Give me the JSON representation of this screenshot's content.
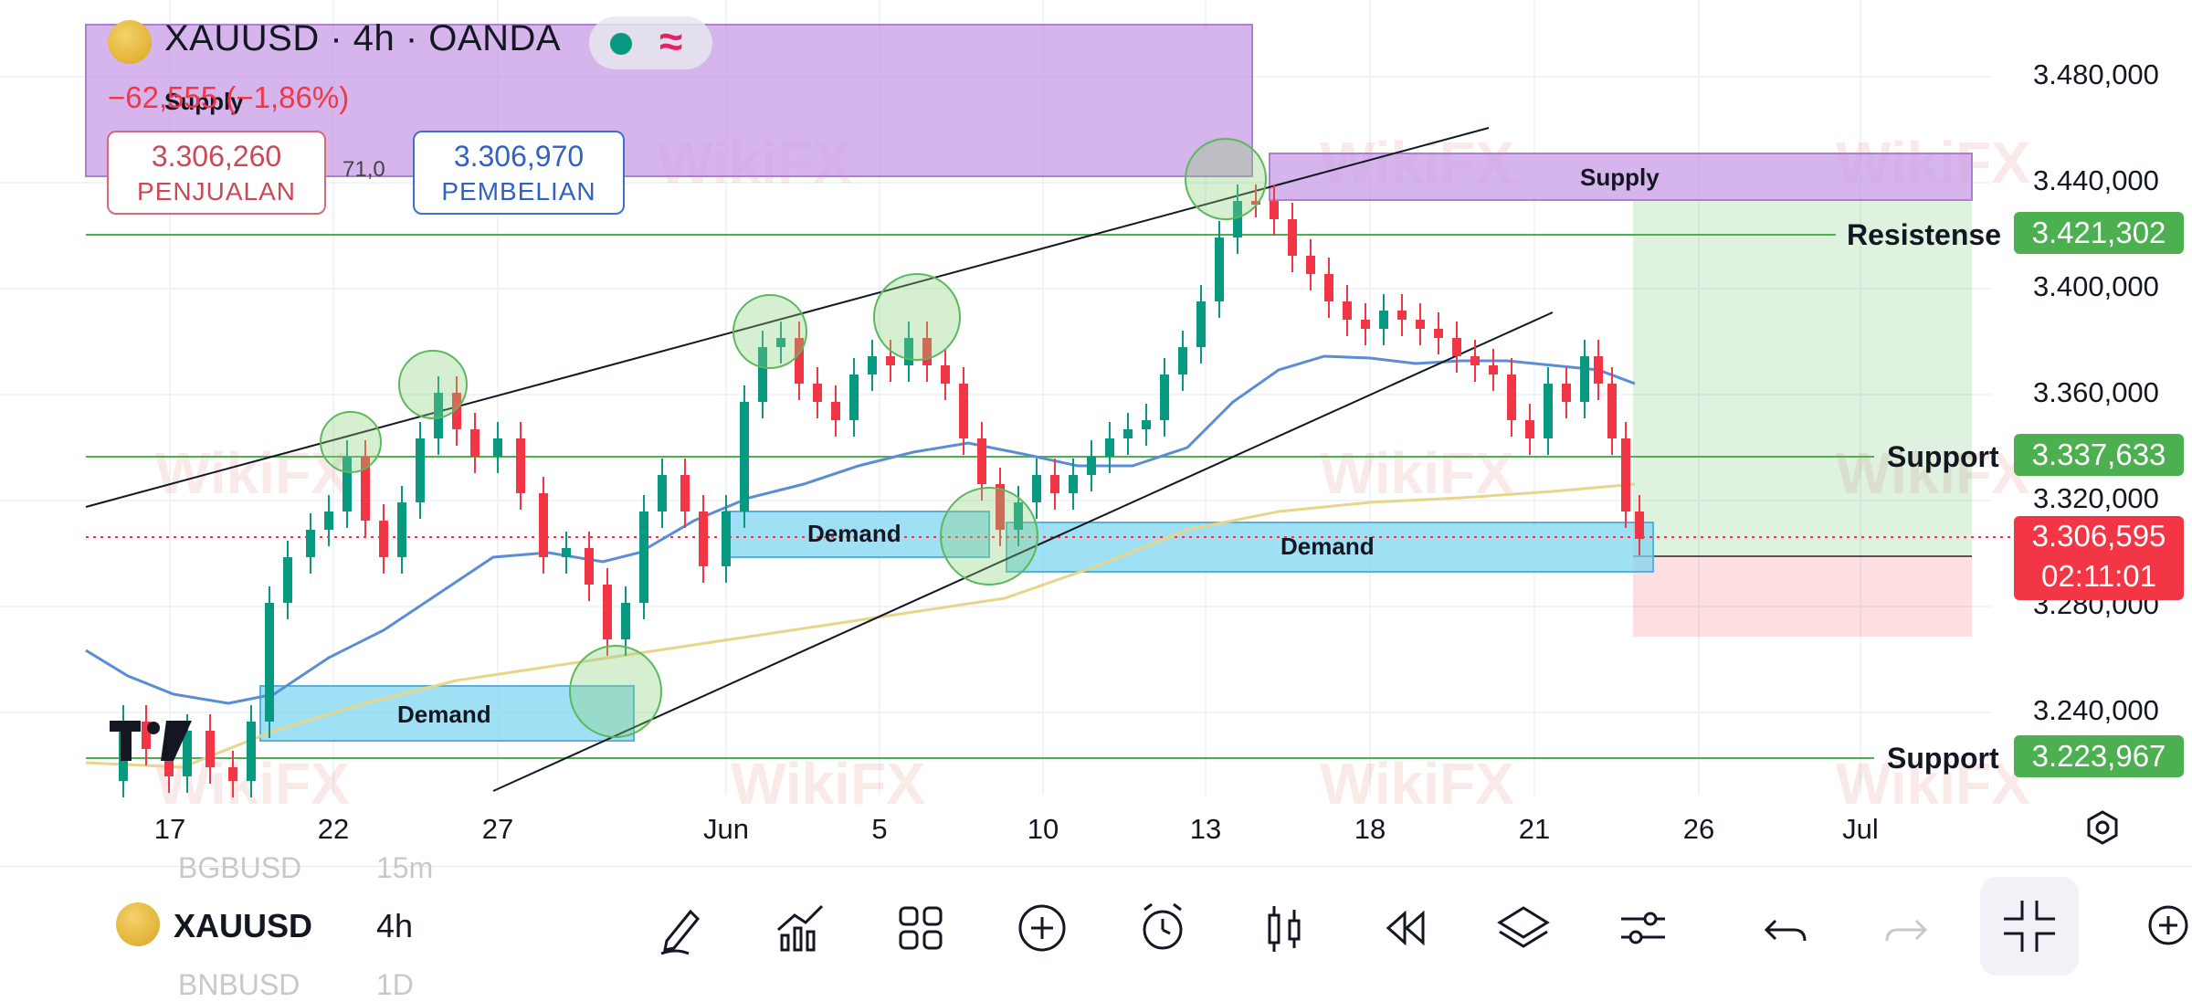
{
  "header": {
    "title": "XAUUSD · 4h · OANDA",
    "change": "−62,555 (−1,86%)",
    "sell_value": "3.306,260",
    "sell_label": "PENJUALAN",
    "spread": "71,0",
    "buy_value": "3.306,970",
    "buy_label": "PEMBELIAN"
  },
  "price_axis": [
    "3.480,000",
    "3.440,000",
    "3.400,000",
    "3.360,000",
    "3.320,000",
    "3.280,000",
    "3.240,000"
  ],
  "date_axis": [
    "17",
    "22",
    "27",
    "Jun",
    "5",
    "10",
    "13",
    "18",
    "21",
    "26",
    "Jul"
  ],
  "levels": {
    "resistance_label": "Resistense",
    "resistance_price": "3.421,302",
    "support1_label": "Support",
    "support1_price": "3.337,633",
    "current_price": "3.306,595",
    "countdown": "02:11:01",
    "support2_label": "Support",
    "support2_price": "3.223,967"
  },
  "zones": {
    "supply_top": "Supply",
    "supply_right": "Supply",
    "demand_left": "Demand",
    "demand_mid": "Demand",
    "demand_right": "Demand"
  },
  "watermark": "WikiFX",
  "bottom": {
    "symbol": "XAUUSD",
    "timeframe": "4h",
    "ghost_top_symbol": "BGBUSD",
    "ghost_top_tf": "15m",
    "ghost_bottom_symbol": "BNBUSD",
    "ghost_bottom_tf": "1D"
  },
  "colors": {
    "up": "#089981",
    "down": "#f23645",
    "supply": "#c89be6",
    "demand": "#7fd6f0",
    "level_line": "#4caf50",
    "ma_blue": "#5b8cd6",
    "ma_yellow": "#e7d58a"
  }
}
